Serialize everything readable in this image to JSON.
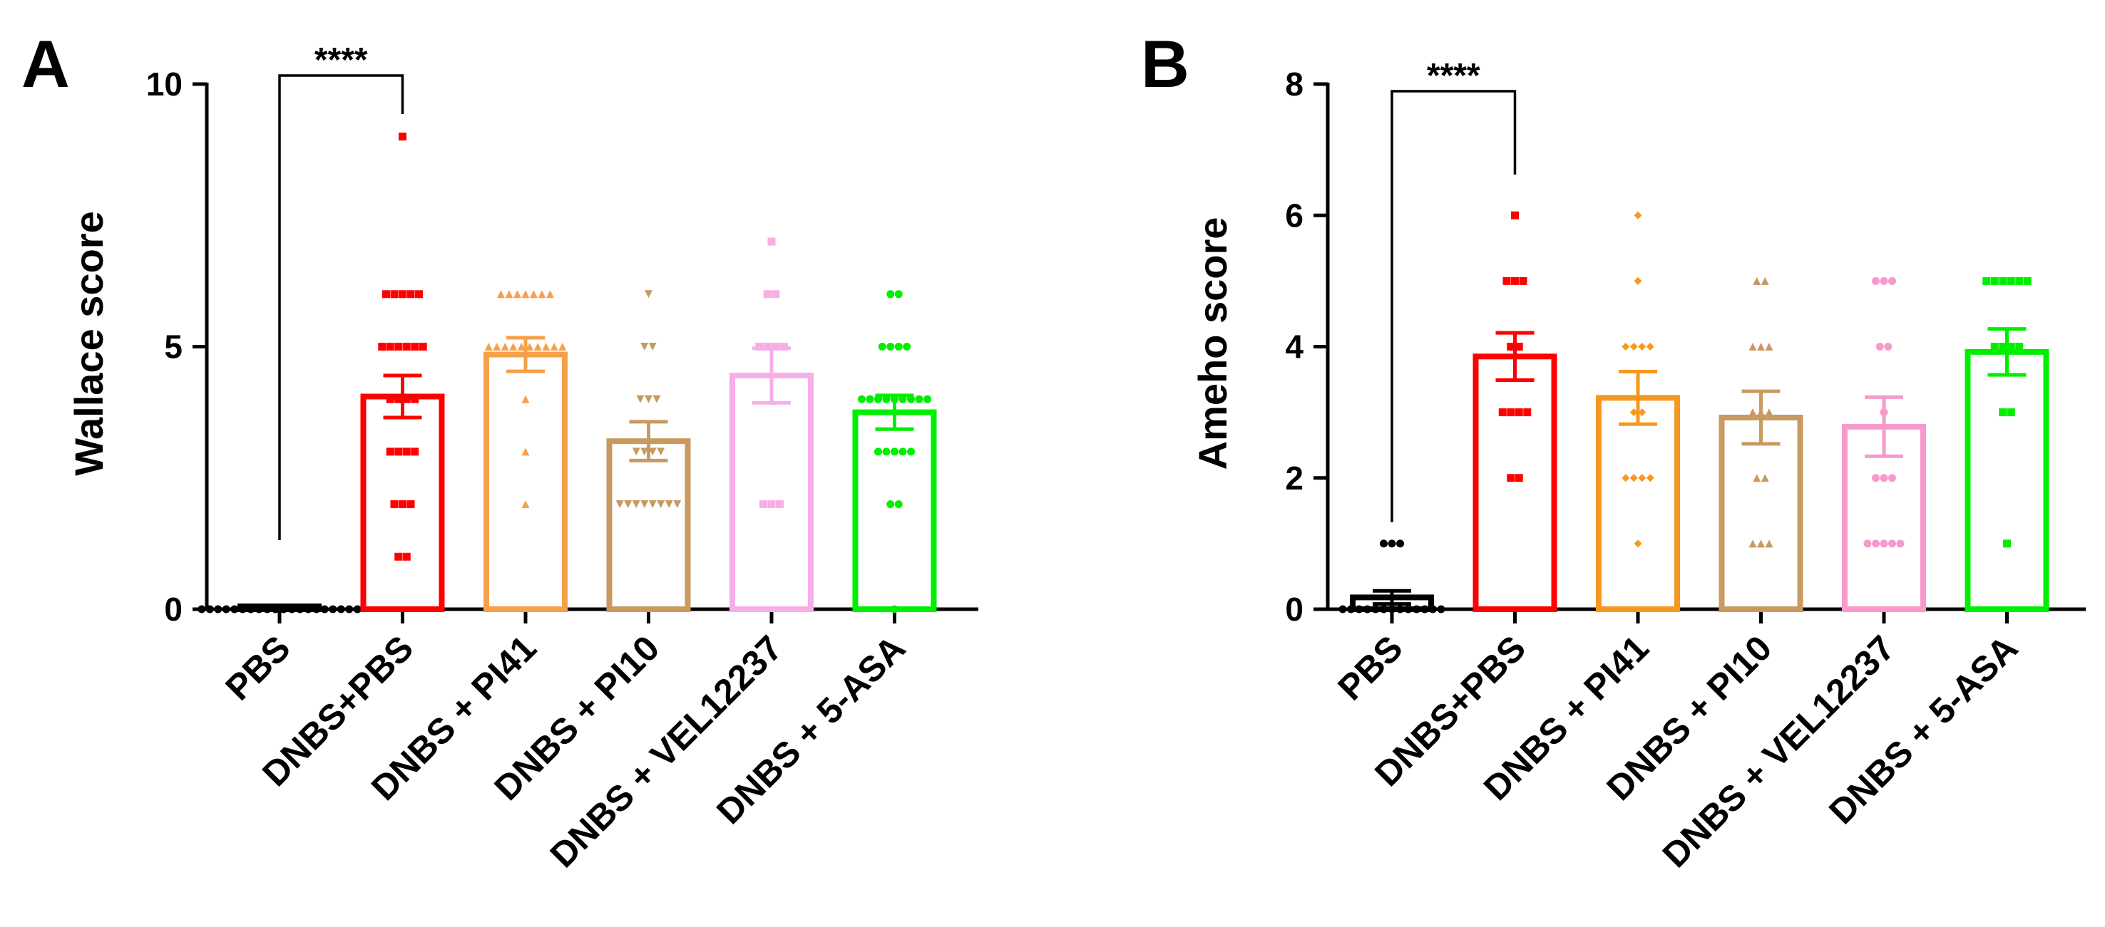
{
  "chart_data": [
    {
      "type": "bar",
      "panel": "A",
      "ylabel": "Wallace score",
      "xlabel": "",
      "ylim": [
        0,
        10
      ],
      "yticks": [
        0,
        5,
        10
      ],
      "error_bars": "SEM",
      "categories": [
        "PBS",
        "DNBS+PBS",
        "DNBS + PI41",
        "DNBS + PI10",
        "DNBS + VEL12237",
        "DNBS + 5-ASA"
      ],
      "colors": [
        "#000000",
        "#ff0000",
        "#f7a04a",
        "#c89a60",
        "#f7aee6",
        "#00ee00"
      ],
      "markers": [
        "circle",
        "square",
        "triangle",
        "triangle-down",
        "square",
        "circle"
      ],
      "values": [
        0.05,
        4.05,
        4.85,
        3.2,
        4.45,
        3.75
      ],
      "errors": [
        0.02,
        0.4,
        0.32,
        0.37,
        0.52,
        0.32
      ],
      "points": [
        [
          0,
          0,
          0,
          0,
          0,
          0,
          0,
          0,
          0,
          0,
          0,
          0,
          0,
          0,
          0,
          0,
          0,
          0,
          0,
          0
        ],
        [
          9,
          6,
          6,
          6,
          6,
          6,
          5,
          5,
          5,
          5,
          5,
          5,
          4,
          4,
          4,
          4,
          3,
          3,
          3,
          3,
          2,
          2,
          2,
          1,
          1
        ],
        [
          6,
          6,
          6,
          6,
          6,
          6,
          6,
          5,
          5,
          5,
          5,
          5,
          5,
          5,
          5,
          5,
          5,
          4,
          3,
          2
        ],
        [
          6,
          5,
          5,
          4,
          4,
          4,
          3,
          3,
          3,
          3,
          2,
          2,
          2,
          2,
          2,
          2,
          2,
          2
        ],
        [
          7,
          6,
          6,
          5,
          5,
          5,
          5,
          2,
          2,
          2
        ],
        [
          6,
          6,
          5,
          5,
          5,
          5,
          4,
          4,
          4,
          4,
          4,
          4,
          4,
          4,
          4,
          3,
          3,
          3,
          3,
          3,
          2,
          2,
          0
        ]
      ],
      "significance": [
        {
          "from": 0,
          "to": 1,
          "label": "****"
        }
      ]
    },
    {
      "type": "bar",
      "panel": "B",
      "ylabel": "Ameho score",
      "xlabel": "",
      "ylim": [
        0,
        8
      ],
      "yticks": [
        0,
        2,
        4,
        6,
        8
      ],
      "error_bars": "SEM",
      "categories": [
        "PBS",
        "DNBS+PBS",
        "DNBS + PI41",
        "DNBS + PI10",
        "DNBS + VEL12237",
        "DNBS + 5-ASA"
      ],
      "colors": [
        "#000000",
        "#ff0000",
        "#f7981e",
        "#c89a60",
        "#f799cc",
        "#00ee00"
      ],
      "markers": [
        "circle",
        "square",
        "diamond",
        "triangle",
        "circle",
        "square"
      ],
      "values": [
        0.18,
        3.85,
        3.22,
        2.92,
        2.78,
        3.92
      ],
      "errors": [
        0.1,
        0.36,
        0.4,
        0.4,
        0.45,
        0.35
      ],
      "points": [
        [
          1,
          1,
          1,
          0,
          0,
          0,
          0,
          0,
          0,
          0,
          0,
          0,
          0,
          0,
          0,
          0
        ],
        [
          6,
          5,
          5,
          5,
          4,
          4,
          3,
          3,
          3,
          3,
          2,
          2
        ],
        [
          6,
          5,
          4,
          4,
          4,
          4,
          3,
          3,
          2,
          2,
          2,
          2,
          1
        ],
        [
          5,
          5,
          4,
          4,
          4,
          3,
          3,
          3,
          2,
          2,
          1,
          1,
          1
        ],
        [
          5,
          5,
          5,
          4,
          4,
          3,
          2,
          2,
          2,
          1,
          1,
          1,
          1,
          1
        ],
        [
          5,
          5,
          5,
          5,
          5,
          5,
          4,
          4,
          4,
          4,
          3,
          3,
          1
        ]
      ],
      "significance": [
        {
          "from": 0,
          "to": 1,
          "label": "****"
        }
      ]
    }
  ]
}
